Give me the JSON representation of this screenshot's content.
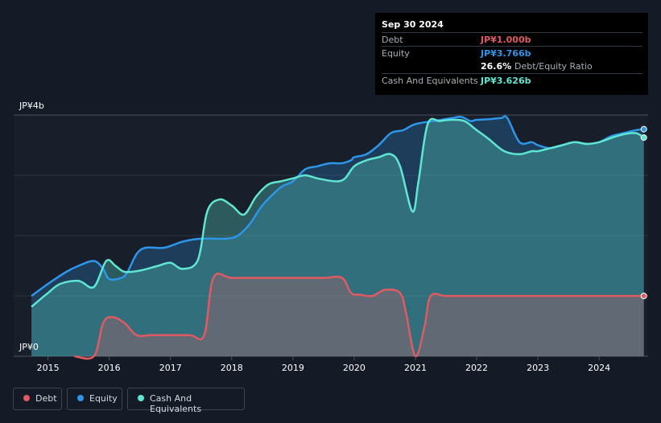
{
  "tooltip": {
    "date": "Sep 30 2024",
    "debt_label": "Debt",
    "debt_value": "JP¥1.000b",
    "equity_label": "Equity",
    "equity_value": "JP¥3.766b",
    "ratio_value": "26.6%",
    "ratio_label": "Debt/Equity Ratio",
    "cash_label": "Cash And Equivalents",
    "cash_value": "JP¥3.626b"
  },
  "legend": {
    "debt": "Debt",
    "equity": "Equity",
    "cash": "Cash And Equivalents"
  },
  "colors": {
    "debt": "#e05a62",
    "equity": "#2d96e8",
    "cash": "#5fe6d2",
    "background": "#151b26"
  },
  "chart_data": {
    "type": "area",
    "ylim": [
      0,
      4
    ],
    "y_tick_labels": [
      "JP¥0",
      "JP¥4b"
    ],
    "x_tick_labels": [
      "2015",
      "2016",
      "2017",
      "2018",
      "2019",
      "2020",
      "2021",
      "2022",
      "2023",
      "2024"
    ],
    "grid": true,
    "legend_position": "bottom-left",
    "series": [
      {
        "name": "Equity",
        "unit": "JP¥b",
        "points": [
          [
            2014.73,
            1.0
          ],
          [
            2015.0,
            1.2
          ],
          [
            2015.3,
            1.4
          ],
          [
            2015.5,
            1.5
          ],
          [
            2015.75,
            1.58
          ],
          [
            2015.9,
            1.45
          ],
          [
            2016.0,
            1.28
          ],
          [
            2016.2,
            1.3
          ],
          [
            2016.3,
            1.4
          ],
          [
            2016.45,
            1.7
          ],
          [
            2016.6,
            1.8
          ],
          [
            2016.9,
            1.8
          ],
          [
            2017.2,
            1.9
          ],
          [
            2017.5,
            1.95
          ],
          [
            2017.9,
            1.95
          ],
          [
            2018.1,
            2.0
          ],
          [
            2018.3,
            2.2
          ],
          [
            2018.5,
            2.5
          ],
          [
            2018.8,
            2.8
          ],
          [
            2019.0,
            2.9
          ],
          [
            2019.2,
            3.1
          ],
          [
            2019.4,
            3.15
          ],
          [
            2019.6,
            3.2
          ],
          [
            2019.8,
            3.2
          ],
          [
            2019.95,
            3.25
          ],
          [
            2020.0,
            3.3
          ],
          [
            2020.2,
            3.35
          ],
          [
            2020.4,
            3.5
          ],
          [
            2020.6,
            3.7
          ],
          [
            2020.8,
            3.75
          ],
          [
            2021.0,
            3.85
          ],
          [
            2021.3,
            3.9
          ],
          [
            2021.6,
            3.95
          ],
          [
            2021.75,
            3.97
          ],
          [
            2021.9,
            3.9
          ],
          [
            2022.0,
            3.92
          ],
          [
            2022.2,
            3.93
          ],
          [
            2022.4,
            3.95
          ],
          [
            2022.5,
            3.95
          ],
          [
            2022.7,
            3.55
          ],
          [
            2022.9,
            3.55
          ],
          [
            2023.0,
            3.5
          ],
          [
            2023.2,
            3.45
          ],
          [
            2023.4,
            3.5
          ],
          [
            2023.6,
            3.55
          ],
          [
            2023.8,
            3.52
          ],
          [
            2024.0,
            3.55
          ],
          [
            2024.2,
            3.65
          ],
          [
            2024.4,
            3.7
          ],
          [
            2024.6,
            3.75
          ],
          [
            2024.73,
            3.766
          ]
        ]
      },
      {
        "name": "Cash And Equivalents",
        "unit": "JP¥b",
        "points": [
          [
            2014.73,
            0.82
          ],
          [
            2015.0,
            1.05
          ],
          [
            2015.2,
            1.2
          ],
          [
            2015.5,
            1.25
          ],
          [
            2015.75,
            1.15
          ],
          [
            2015.95,
            1.58
          ],
          [
            2016.1,
            1.5
          ],
          [
            2016.25,
            1.4
          ],
          [
            2016.5,
            1.42
          ],
          [
            2016.8,
            1.5
          ],
          [
            2017.0,
            1.55
          ],
          [
            2017.2,
            1.45
          ],
          [
            2017.45,
            1.6
          ],
          [
            2017.6,
            2.4
          ],
          [
            2017.8,
            2.6
          ],
          [
            2018.0,
            2.5
          ],
          [
            2018.2,
            2.35
          ],
          [
            2018.4,
            2.65
          ],
          [
            2018.6,
            2.85
          ],
          [
            2018.8,
            2.9
          ],
          [
            2019.0,
            2.95
          ],
          [
            2019.2,
            3.0
          ],
          [
            2019.4,
            2.95
          ],
          [
            2019.7,
            2.9
          ],
          [
            2019.85,
            2.95
          ],
          [
            2020.0,
            3.15
          ],
          [
            2020.2,
            3.25
          ],
          [
            2020.4,
            3.3
          ],
          [
            2020.6,
            3.35
          ],
          [
            2020.75,
            3.15
          ],
          [
            2020.95,
            2.4
          ],
          [
            2021.05,
            2.9
          ],
          [
            2021.2,
            3.85
          ],
          [
            2021.4,
            3.9
          ],
          [
            2021.6,
            3.92
          ],
          [
            2021.8,
            3.9
          ],
          [
            2022.0,
            3.75
          ],
          [
            2022.2,
            3.6
          ],
          [
            2022.45,
            3.4
          ],
          [
            2022.7,
            3.35
          ],
          [
            2022.9,
            3.4
          ],
          [
            2023.0,
            3.4
          ],
          [
            2023.2,
            3.45
          ],
          [
            2023.4,
            3.5
          ],
          [
            2023.6,
            3.55
          ],
          [
            2023.8,
            3.52
          ],
          [
            2024.0,
            3.55
          ],
          [
            2024.2,
            3.62
          ],
          [
            2024.4,
            3.68
          ],
          [
            2024.6,
            3.7
          ],
          [
            2024.73,
            3.626
          ]
        ]
      },
      {
        "name": "Debt",
        "unit": "JP¥b",
        "points": [
          [
            2015.43,
            0.0
          ],
          [
            2015.75,
            0.0
          ],
          [
            2015.9,
            0.55
          ],
          [
            2016.05,
            0.65
          ],
          [
            2016.25,
            0.55
          ],
          [
            2016.45,
            0.35
          ],
          [
            2016.7,
            0.35
          ],
          [
            2017.3,
            0.35
          ],
          [
            2017.55,
            0.35
          ],
          [
            2017.7,
            1.3
          ],
          [
            2018.0,
            1.3
          ],
          [
            2018.5,
            1.3
          ],
          [
            2019.0,
            1.3
          ],
          [
            2019.5,
            1.3
          ],
          [
            2019.8,
            1.3
          ],
          [
            2019.95,
            1.05
          ],
          [
            2020.1,
            1.02
          ],
          [
            2020.3,
            1.0
          ],
          [
            2020.5,
            1.1
          ],
          [
            2020.75,
            1.05
          ],
          [
            2020.85,
            0.7
          ],
          [
            2021.0,
            0.0
          ],
          [
            2021.15,
            0.5
          ],
          [
            2021.25,
            1.0
          ],
          [
            2021.5,
            1.0
          ],
          [
            2022.0,
            1.0
          ],
          [
            2023.0,
            1.0
          ],
          [
            2024.0,
            1.0
          ],
          [
            2024.73,
            1.0
          ]
        ]
      }
    ]
  }
}
